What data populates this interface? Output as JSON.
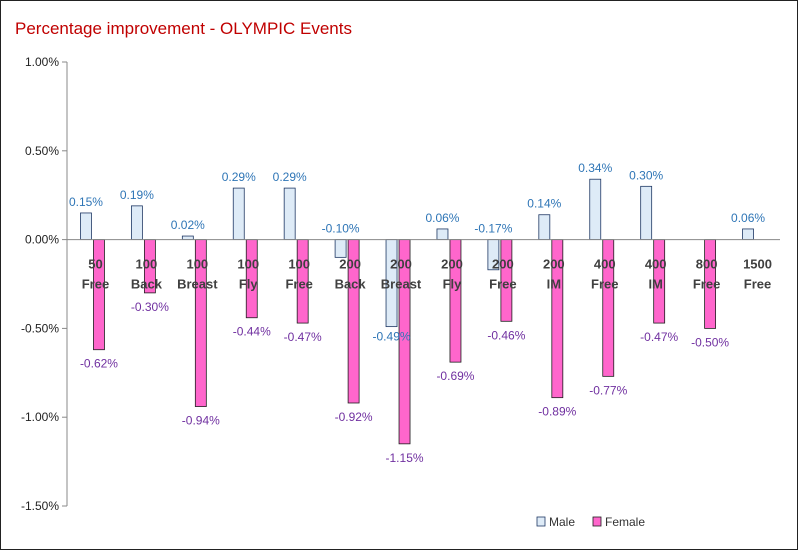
{
  "chart_data": {
    "type": "bar",
    "title": "Percentage improvement - OLYMPIC Events",
    "xlabel": "",
    "ylabel": "",
    "ylim": [
      -1.5,
      1.0
    ],
    "yticks": [
      "1.00%",
      "0.50%",
      "0.00%",
      "-0.50%",
      "-1.00%",
      "-1.50%"
    ],
    "ytick_values": [
      1.0,
      0.5,
      0.0,
      -0.5,
      -1.0,
      -1.5
    ],
    "grid": false,
    "legend": "bottom-right",
    "categories": [
      [
        "50",
        "Free"
      ],
      [
        "100",
        "Back"
      ],
      [
        "100",
        "Breast"
      ],
      [
        "100",
        "Fly"
      ],
      [
        "100",
        "Free"
      ],
      [
        "200",
        "Back"
      ],
      [
        "200",
        "Breast"
      ],
      [
        "200",
        "Fly"
      ],
      [
        "200",
        "Free"
      ],
      [
        "200",
        "IM"
      ],
      [
        "400",
        "Free"
      ],
      [
        "400",
        "IM"
      ],
      [
        "800",
        "Free"
      ],
      [
        "1500",
        "Free"
      ]
    ],
    "series": [
      {
        "name": "Male",
        "color": "#deebf7",
        "stroke": "#1f3864",
        "values": [
          0.15,
          0.19,
          0.02,
          0.29,
          0.29,
          -0.1,
          -0.49,
          0.06,
          -0.17,
          0.14,
          0.34,
          0.3,
          null,
          0.06
        ],
        "labels": [
          "0.15%",
          "0.19%",
          "0.02%",
          "0.29%",
          "0.29%",
          "-0.10%",
          "-0.49%",
          "0.06%",
          "-0.17%",
          "0.14%",
          "0.34%",
          "0.30%",
          "",
          "0.06%"
        ]
      },
      {
        "name": "Female",
        "color": "#ff66cc",
        "stroke": "#1f1f1f",
        "values": [
          -0.62,
          -0.3,
          -0.94,
          -0.44,
          -0.47,
          -0.92,
          -1.15,
          -0.69,
          -0.46,
          -0.89,
          -0.77,
          -0.47,
          -0.5,
          null
        ],
        "labels": [
          "-0.62%",
          "-0.30%",
          "-0.94%",
          "-0.44%",
          "-0.47%",
          "-0.92%",
          "-1.15%",
          "-0.69%",
          "-0.46%",
          "-0.89%",
          "-0.77%",
          "-0.47%",
          "-0.50%",
          ""
        ]
      }
    ]
  }
}
